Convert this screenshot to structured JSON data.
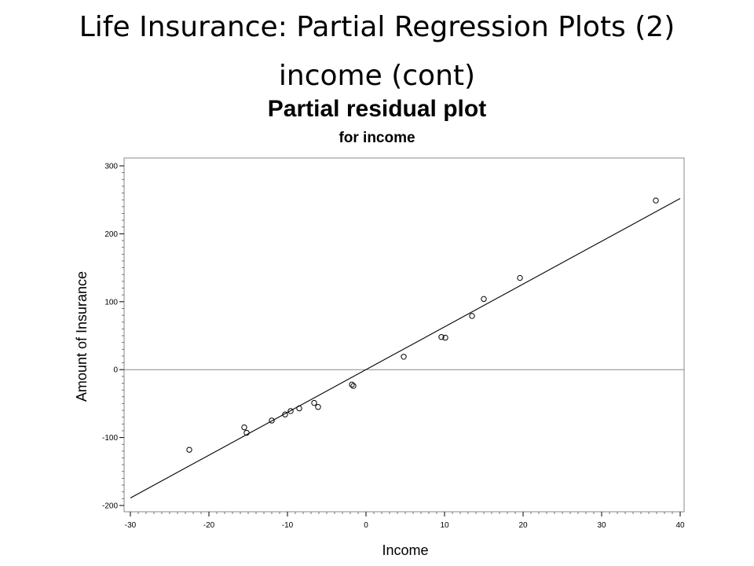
{
  "slide": {
    "title_line1": "Life Insurance: Partial Regression Plots (2)",
    "title_line2": "income (cont)"
  },
  "chart_data": {
    "type": "scatter",
    "title": "Partial residual plot",
    "subtitle": "for income",
    "xlabel": "Income",
    "ylabel": "Amount of Insurance",
    "xlim": [
      -30,
      40
    ],
    "ylim": [
      -200,
      300
    ],
    "xticks": [
      -30,
      -20,
      -10,
      0,
      10,
      20,
      30,
      40
    ],
    "yticks": [
      -200,
      -100,
      0,
      100,
      200,
      300
    ],
    "grid": false,
    "reference_line_y": 0,
    "points": [
      {
        "x": -22.5,
        "y": -118
      },
      {
        "x": -15.5,
        "y": -85
      },
      {
        "x": -15.2,
        "y": -93
      },
      {
        "x": -12,
        "y": -75
      },
      {
        "x": -10.3,
        "y": -66
      },
      {
        "x": -9.6,
        "y": -61
      },
      {
        "x": -8.5,
        "y": -57
      },
      {
        "x": -6.6,
        "y": -49
      },
      {
        "x": -6.1,
        "y": -55
      },
      {
        "x": -1.8,
        "y": -22
      },
      {
        "x": -1.6,
        "y": -24
      },
      {
        "x": 4.8,
        "y": 19
      },
      {
        "x": 9.6,
        "y": 48
      },
      {
        "x": 10.1,
        "y": 47
      },
      {
        "x": 13.5,
        "y": 79
      },
      {
        "x": 15,
        "y": 104
      },
      {
        "x": 19.6,
        "y": 135
      },
      {
        "x": 36.9,
        "y": 249
      }
    ],
    "fit_line": {
      "x": [
        -30,
        40
      ],
      "y": [
        -189,
        252
      ]
    }
  }
}
